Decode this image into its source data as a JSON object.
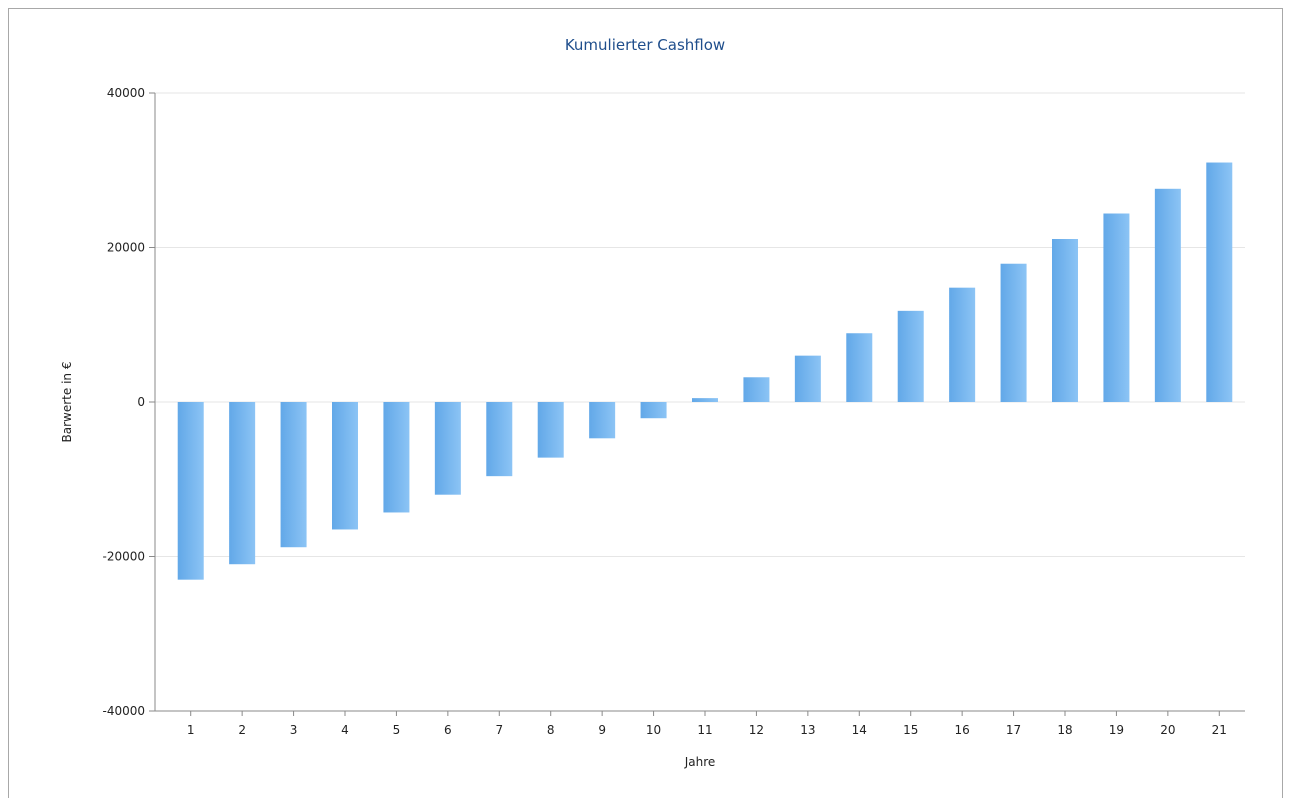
{
  "chart_data": {
    "type": "bar",
    "title": "Kumulierter Cashflow",
    "xlabel": "Jahre",
    "ylabel": "Barwerte in €",
    "ylim": [
      -40000,
      40000
    ],
    "yticks": [
      40000,
      20000,
      0,
      -20000,
      -40000
    ],
    "grid": true,
    "legend": "none",
    "categories": [
      "1",
      "2",
      "3",
      "4",
      "5",
      "6",
      "7",
      "8",
      "9",
      "10",
      "11",
      "12",
      "13",
      "14",
      "15",
      "16",
      "17",
      "18",
      "19",
      "20",
      "21"
    ],
    "values": [
      -23000,
      -21000,
      -18800,
      -16500,
      -14300,
      -12000,
      -9600,
      -7200,
      -4700,
      -2100,
      500,
      3200,
      6000,
      8900,
      11800,
      14800,
      17900,
      21100,
      24400,
      27600,
      31000
    ],
    "bar_color": "#62a8e8",
    "bar_color_light": "#8cc4f5"
  }
}
